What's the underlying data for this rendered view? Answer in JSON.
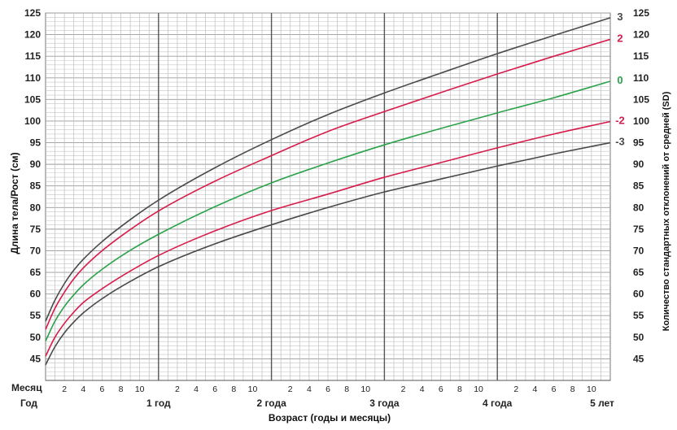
{
  "chart_data": {
    "type": "line",
    "title": "",
    "ylabel": "Длина тела/Рост (см)",
    "ylabel_right": "Количество стандартных отклонений от средней (SD)",
    "xlabel": "Возраст (годы и месяцы)",
    "x_unit": "months",
    "xlim": [
      0,
      60
    ],
    "ylim": [
      40,
      125
    ],
    "yticks": [
      45,
      50,
      55,
      60,
      65,
      70,
      75,
      80,
      85,
      90,
      95,
      100,
      105,
      110,
      115,
      120,
      125
    ],
    "month_row_label": "Месяц",
    "year_row_label": "Год",
    "month_ticks": [
      "2",
      "4",
      "6",
      "8",
      "10"
    ],
    "year_ticks": [
      {
        "month": 12,
        "label": "1 год"
      },
      {
        "month": 24,
        "label": "2 года"
      },
      {
        "month": 36,
        "label": "3 года"
      },
      {
        "month": 48,
        "label": "4 года"
      },
      {
        "month": 60,
        "label": "5 лет"
      }
    ],
    "grid": true,
    "series": [
      {
        "name": "3",
        "color": "#4a4a4a",
        "x": [
          0,
          1,
          2,
          3,
          4,
          6,
          9,
          12,
          18,
          24,
          30,
          36,
          42,
          48,
          54,
          60
        ],
        "values": [
          53.7,
          58.6,
          62.4,
          65.5,
          68.0,
          72.1,
          77.2,
          81.7,
          89.2,
          95.7,
          101.5,
          106.5,
          111.1,
          115.6,
          119.8,
          123.9
        ]
      },
      {
        "name": "2",
        "color": "#d81b4b",
        "x": [
          0,
          1,
          2,
          3,
          4,
          6,
          9,
          12,
          18,
          24,
          30,
          36,
          42,
          48,
          54,
          60
        ],
        "values": [
          51.8,
          56.7,
          60.4,
          63.5,
          66.0,
          70.0,
          74.9,
          79.2,
          86.1,
          92.0,
          97.6,
          102.2,
          106.6,
          110.9,
          115.0,
          118.9
        ]
      },
      {
        "name": "0",
        "color": "#2aa24a",
        "x": [
          0,
          1,
          2,
          3,
          4,
          6,
          9,
          12,
          18,
          24,
          30,
          36,
          42,
          48,
          54,
          60
        ],
        "values": [
          49.1,
          53.7,
          57.1,
          59.8,
          62.1,
          65.7,
          70.1,
          73.8,
          80.2,
          85.7,
          90.3,
          94.5,
          98.3,
          101.9,
          105.4,
          109.2
        ]
      },
      {
        "name": "-2",
        "color": "#d81b4b",
        "x": [
          0,
          1,
          2,
          3,
          4,
          6,
          9,
          12,
          18,
          24,
          30,
          36,
          42,
          48,
          54,
          60
        ],
        "values": [
          45.6,
          50.0,
          53.2,
          55.8,
          58.0,
          61.2,
          65.3,
          68.9,
          74.6,
          79.3,
          83.1,
          87.0,
          90.4,
          93.8,
          97.0,
          99.9
        ]
      },
      {
        "name": "-3",
        "color": "#4a4a4a",
        "x": [
          0,
          1,
          2,
          3,
          4,
          6,
          9,
          12,
          18,
          24,
          30,
          36,
          42,
          48,
          54,
          60
        ],
        "values": [
          43.6,
          47.8,
          51.0,
          53.5,
          55.6,
          58.9,
          62.9,
          66.3,
          71.6,
          76.0,
          80.0,
          83.6,
          86.6,
          89.6,
          92.4,
          95.0
        ]
      }
    ]
  }
}
